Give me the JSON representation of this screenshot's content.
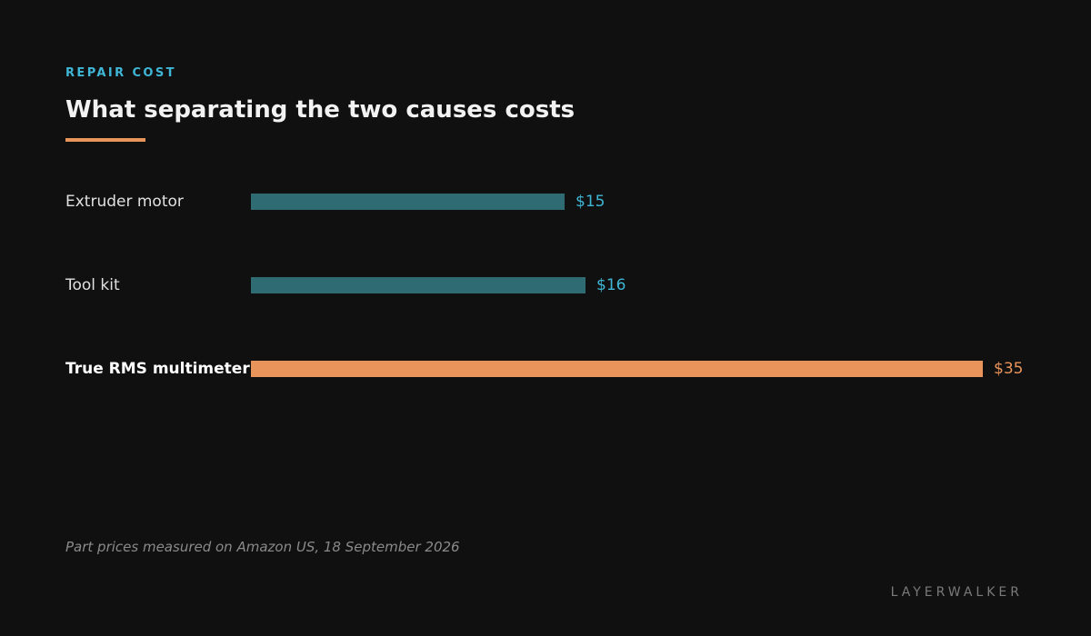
{
  "header": {
    "eyebrow": "REPAIR COST",
    "title": "What separating the two causes costs"
  },
  "chart_data": {
    "type": "bar",
    "orientation": "horizontal",
    "categories": [
      "Extruder motor",
      "Tool kit",
      "True RMS multimeter"
    ],
    "values": [
      15,
      16,
      35
    ],
    "value_labels": [
      "$15",
      "$16",
      "$35"
    ],
    "highlighted_category": "True RMS multimeter",
    "xlim": [
      0,
      35
    ],
    "grid": false,
    "colors": {
      "default_bar": "#2e6b73",
      "default_label": "#3fb6d6",
      "highlight_bar": "#e8945a",
      "highlight_label": "#e8945a",
      "category_text": "#e0e0e0",
      "highlight_category_text": "#ffffff"
    }
  },
  "footer": {
    "note": "Part prices measured on Amazon US, 18 September 2026",
    "brand": "LAYERWALKER"
  }
}
